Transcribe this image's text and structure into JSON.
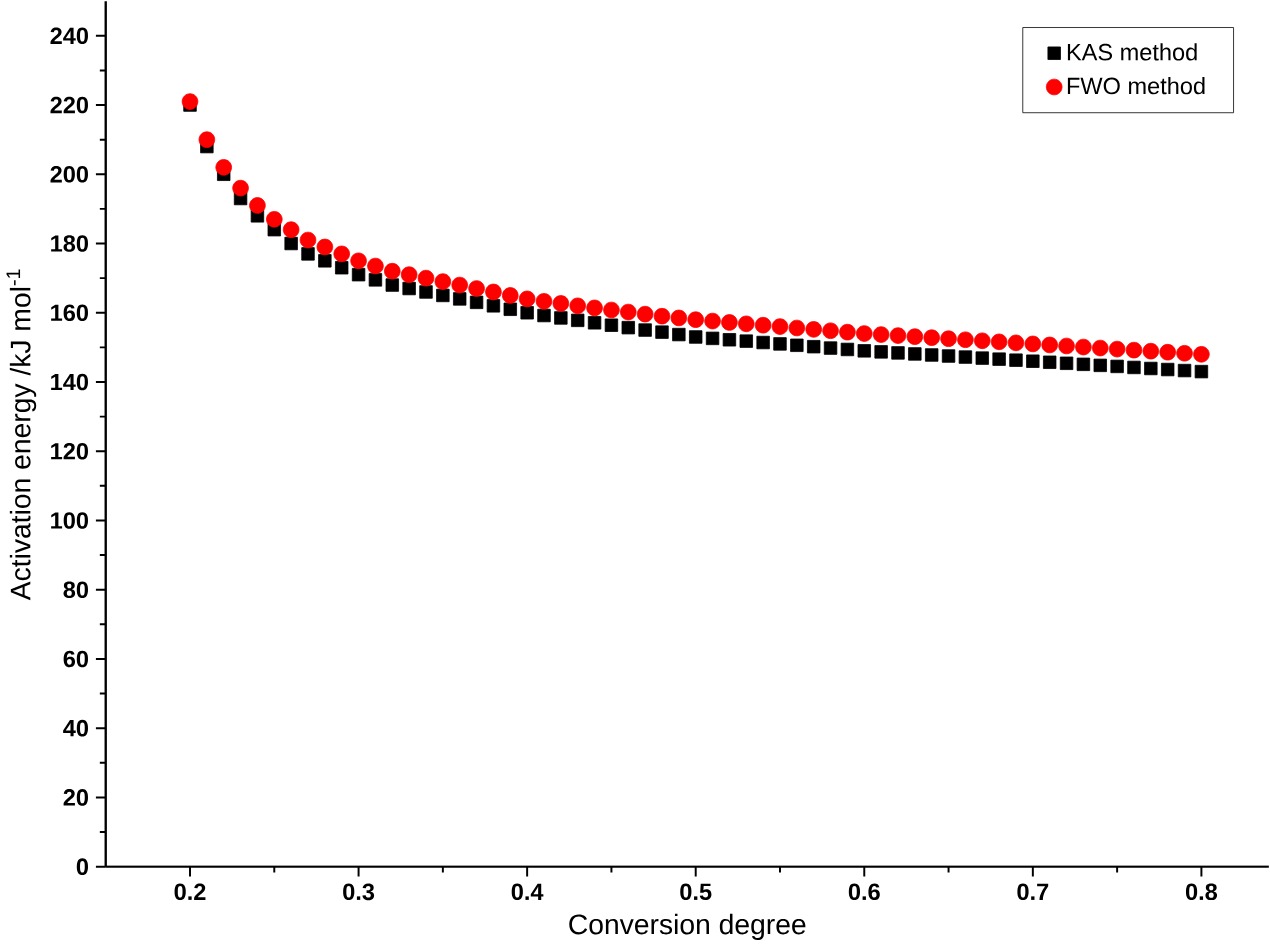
{
  "chart_data": {
    "type": "scatter",
    "xlabel": "Conversion degree",
    "ylabel": "Activation energy /kJ mol$^{-1}$",
    "x": [
      0.2,
      0.21,
      0.22,
      0.23,
      0.24,
      0.25,
      0.26,
      0.27,
      0.28,
      0.29,
      0.3,
      0.31,
      0.32,
      0.33,
      0.34,
      0.35,
      0.36,
      0.37,
      0.38,
      0.39,
      0.4,
      0.41,
      0.42,
      0.43,
      0.44,
      0.45,
      0.46,
      0.47,
      0.48,
      0.49,
      0.5,
      0.51,
      0.52,
      0.53,
      0.54,
      0.55,
      0.56,
      0.57,
      0.58,
      0.59,
      0.6,
      0.61,
      0.62,
      0.63,
      0.64,
      0.65,
      0.66,
      0.67,
      0.68,
      0.69,
      0.7,
      0.71,
      0.72,
      0.73,
      0.74,
      0.75,
      0.76,
      0.77,
      0.78,
      0.79,
      0.8
    ],
    "series": [
      {
        "name": "KAS  method",
        "color": "#000000",
        "marker": "square",
        "values": [
          220,
          208,
          200,
          193,
          188,
          184,
          180,
          177,
          175,
          173,
          171,
          169.5,
          168,
          167,
          166,
          165,
          164,
          163,
          162,
          161,
          160,
          159.2,
          158.5,
          157.8,
          157.1,
          156.4,
          155.7,
          155,
          154.4,
          153.7,
          153,
          152.6,
          152.2,
          151.8,
          151.4,
          151,
          150.6,
          150.2,
          149.8,
          149.4,
          149,
          148.7,
          148.4,
          148.1,
          147.8,
          147.5,
          147.2,
          146.9,
          146.6,
          146.3,
          146,
          145.7,
          145.4,
          145.1,
          144.8,
          144.5,
          144.2,
          143.9,
          143.6,
          143.3,
          143
        ]
      },
      {
        "name": "FWO method",
        "color": "#ff0000",
        "marker": "circle",
        "values": [
          221,
          210,
          202,
          196,
          191,
          187,
          184,
          181,
          179,
          177,
          175,
          173.5,
          172,
          171,
          170,
          169,
          168,
          167,
          166,
          165,
          164,
          163.3,
          162.7,
          162,
          161.4,
          160.8,
          160.2,
          159.6,
          159,
          158.5,
          158,
          157.6,
          157.2,
          156.8,
          156.4,
          156,
          155.6,
          155.2,
          154.8,
          154.4,
          154,
          153.7,
          153.4,
          153.1,
          152.8,
          152.5,
          152.2,
          151.9,
          151.6,
          151.3,
          151,
          150.7,
          150.4,
          150.1,
          149.8,
          149.5,
          149.2,
          148.9,
          148.6,
          148.3,
          148
        ]
      }
    ],
    "xlim": [
      0.15,
      0.84
    ],
    "ylim": [
      0,
      250
    ],
    "xticks": [
      0.2,
      0.3,
      0.4,
      0.5,
      0.6,
      0.7,
      0.8
    ],
    "yticks": [
      0,
      20,
      40,
      60,
      80,
      100,
      120,
      140,
      160,
      180,
      200,
      220,
      240
    ],
    "grid": false,
    "legend": "top right"
  }
}
